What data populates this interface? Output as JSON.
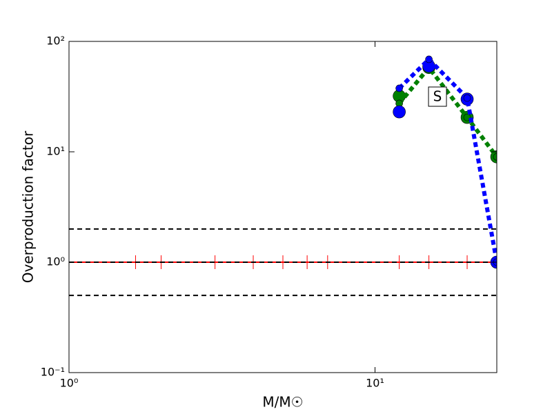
{
  "chart_data": {
    "type": "line",
    "xlabel": "M/M☉",
    "ylabel": "Overproduction factor",
    "xscale": "log",
    "yscale": "log",
    "xlim": [
      1,
      25
    ],
    "ylim": [
      0.1,
      100
    ],
    "xticks": [
      {
        "value": 1,
        "label": "10⁰"
      },
      {
        "value": 10,
        "label": "10¹"
      }
    ],
    "yticks": [
      {
        "value": 0.1,
        "label": "10⁻¹"
      },
      {
        "value": 1,
        "label": "10⁰"
      },
      {
        "value": 10,
        "label": "10¹"
      },
      {
        "value": 100,
        "label": "10²"
      }
    ],
    "hlines": [
      2,
      1,
      0.5
    ],
    "hline_color": "#000000",
    "ref_line": 1,
    "ref_color": "#ff0000",
    "ref_ticks": [
      1.65,
      2,
      3,
      4,
      5,
      6,
      7,
      12,
      15,
      20
    ],
    "series": [
      {
        "color": "#008000",
        "x": [
          12,
          15,
          20,
          25
        ],
        "values": [
          32,
          58,
          20.5,
          9.0
        ],
        "marker": "large",
        "line": false
      },
      {
        "color": "#008000",
        "x": [
          12,
          15,
          20,
          25
        ],
        "values": [
          27.4,
          57.9,
          20.5,
          9.0
        ],
        "marker": "small",
        "line": true
      },
      {
        "color": "#0000ff",
        "x": [
          12,
          15,
          20,
          25
        ],
        "values": [
          23,
          59.6,
          30,
          1.0
        ],
        "marker": "large",
        "line": false
      },
      {
        "color": "#0000ff",
        "x": [
          12,
          15,
          20,
          25
        ],
        "values": [
          37.6,
          68.8,
          30.7,
          1.0
        ],
        "marker": "small",
        "line": true
      }
    ],
    "annotations": [
      {
        "text": "S",
        "x": 16,
        "y": 31.6
      }
    ]
  }
}
